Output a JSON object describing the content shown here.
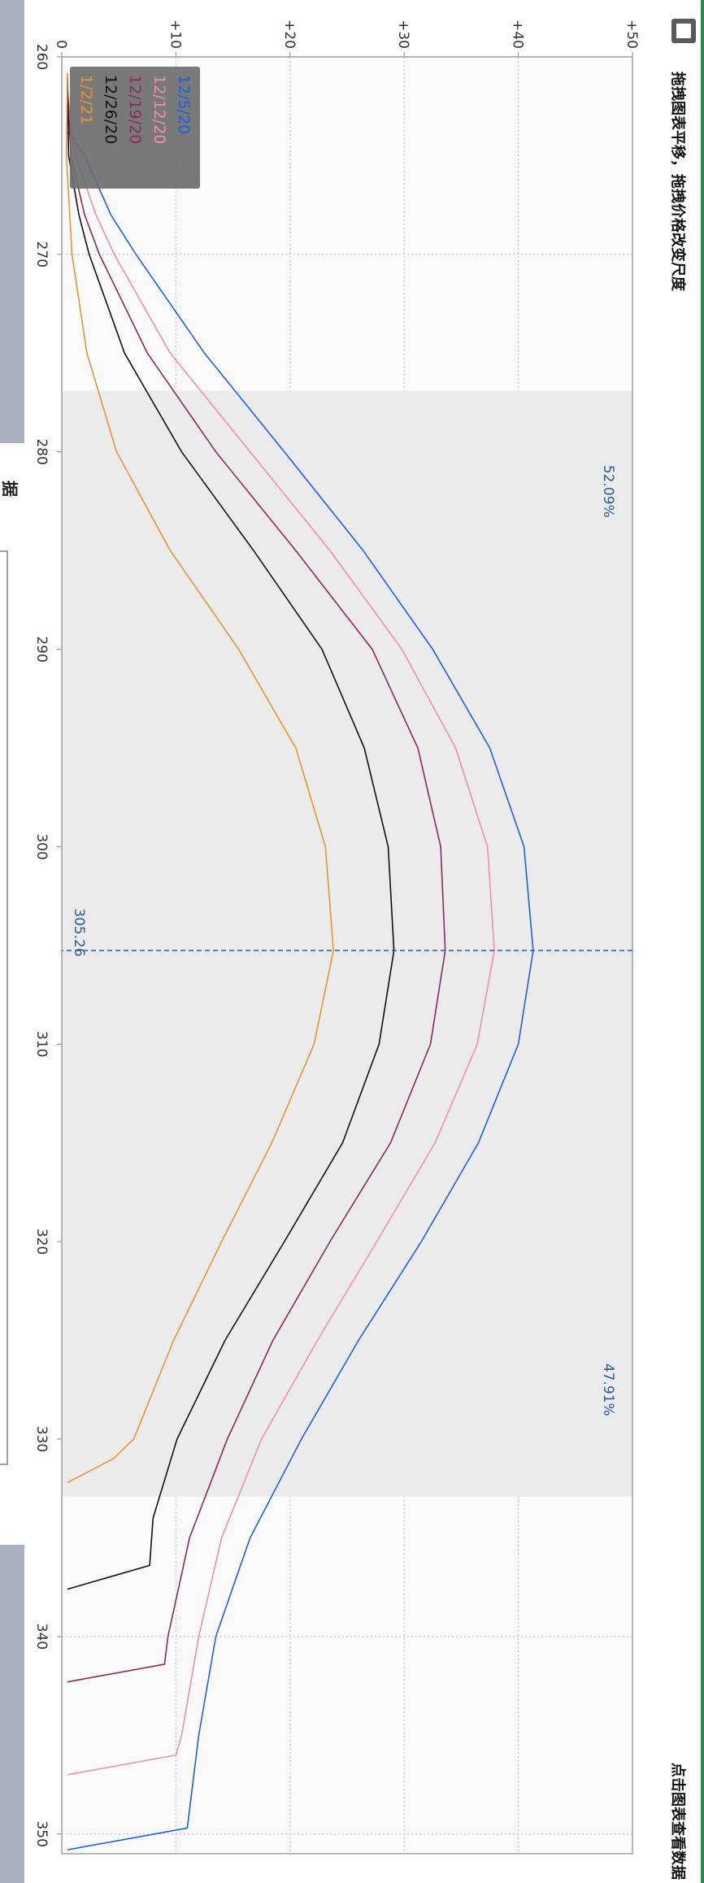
{
  "toolbar": {
    "hint_left": "拖拽图表平移，拖拽价格改变尺度",
    "hint_right": "点击图表查看数据",
    "chart_toggle_icon": "chart-icon",
    "left_panel_char": "据"
  },
  "colors": {
    "top_bar": "#2b8a4b",
    "side_panel": "#a9b2bc",
    "shaded_region": "#ebebeb",
    "marker": "#2b5a9a"
  },
  "chart_data": {
    "type": "line",
    "xlim": [
      260,
      351
    ],
    "ylim": [
      0,
      50
    ],
    "grid": true,
    "legend_position": "top-left",
    "x_ticks": [
      "260",
      "270",
      "280",
      "290",
      "300",
      "310",
      "320",
      "330",
      "340",
      "350"
    ],
    "y_ticks": [
      "0",
      "+10",
      "+20",
      "+30",
      "+40",
      "+50"
    ],
    "marker": {
      "x": 305.26,
      "label": "305.26"
    },
    "shaded_range": [
      276.9,
      332.9
    ],
    "annotations": [
      {
        "x": 282,
        "y": 47.5,
        "text": "52.09%"
      },
      {
        "x": 327.5,
        "y": 47.5,
        "text": "47.91%"
      }
    ],
    "series": [
      {
        "name": "12/5/20",
        "color": "#1f5fe8",
        "points": [
          [
            263.8,
            0.5
          ],
          [
            265,
            2
          ],
          [
            268,
            4.3
          ],
          [
            270,
            6.5
          ],
          [
            275,
            12.5
          ],
          [
            280,
            19.5
          ],
          [
            285,
            26.4
          ],
          [
            290,
            32.5
          ],
          [
            295,
            37.5
          ],
          [
            300,
            40.5
          ],
          [
            305.26,
            41.3
          ],
          [
            310,
            40
          ],
          [
            315,
            36.5
          ],
          [
            320,
            31.5
          ],
          [
            325,
            26
          ],
          [
            330,
            21
          ],
          [
            335,
            16.5
          ],
          [
            340,
            13.5
          ],
          [
            345,
            12
          ],
          [
            349.7,
            11
          ],
          [
            350.8,
            0.5
          ]
        ]
      },
      {
        "name": "12/12/20",
        "color": "#f090a8",
        "points": [
          [
            261.8,
            0.5
          ],
          [
            265,
            1.2
          ],
          [
            268,
            3
          ],
          [
            270,
            4.6
          ],
          [
            275,
            9.5
          ],
          [
            280,
            16.5
          ],
          [
            285,
            23.5
          ],
          [
            290,
            29.8
          ],
          [
            295,
            34.5
          ],
          [
            300,
            37.3
          ],
          [
            305.26,
            37.9
          ],
          [
            310,
            36.4
          ],
          [
            315,
            32.7
          ],
          [
            320,
            27.6
          ],
          [
            325,
            22.4
          ],
          [
            330,
            17.5
          ],
          [
            335,
            14
          ],
          [
            340,
            12
          ],
          [
            345,
            10.5
          ],
          [
            346,
            10
          ],
          [
            347,
            0.5
          ]
        ]
      },
      {
        "name": "12/19/20",
        "color": "#8b2a5a",
        "points": [
          [
            261.5,
            0.5
          ],
          [
            265,
            0.8
          ],
          [
            268,
            2
          ],
          [
            270,
            3.3
          ],
          [
            275,
            7.5
          ],
          [
            280,
            13.5
          ],
          [
            285,
            20.5
          ],
          [
            290,
            27.2
          ],
          [
            295,
            31.2
          ],
          [
            300,
            33.2
          ],
          [
            305.26,
            33.6
          ],
          [
            310,
            32.3
          ],
          [
            315,
            28.8
          ],
          [
            320,
            23.5
          ],
          [
            325,
            18.5
          ],
          [
            330,
            14.5
          ],
          [
            335,
            11.2
          ],
          [
            340,
            9.3
          ],
          [
            341.4,
            9
          ],
          [
            342.3,
            0.5
          ]
        ]
      },
      {
        "name": "12/26/20",
        "color": "#111111",
        "points": [
          [
            261,
            0.5
          ],
          [
            265,
            0.6
          ],
          [
            268,
            1.5
          ],
          [
            270,
            2.4
          ],
          [
            275,
            5.5
          ],
          [
            280,
            10.5
          ],
          [
            285,
            16.8
          ],
          [
            290,
            22.8
          ],
          [
            295,
            26.5
          ],
          [
            300,
            28.6
          ],
          [
            305.26,
            29.1
          ],
          [
            310,
            27.8
          ],
          [
            315,
            24.6
          ],
          [
            320,
            19.5
          ],
          [
            325,
            14.3
          ],
          [
            330,
            10.1
          ],
          [
            334,
            8
          ],
          [
            336.4,
            7.7
          ],
          [
            337.6,
            0.5
          ]
        ]
      },
      {
        "name": "1/2/21",
        "color": "#e8952e",
        "points": [
          [
            260.8,
            0.5
          ],
          [
            265,
            0.4
          ],
          [
            270,
            0.9
          ],
          [
            275,
            2.2
          ],
          [
            280,
            4.8
          ],
          [
            285,
            9.5
          ],
          [
            290,
            15.5
          ],
          [
            295,
            20.5
          ],
          [
            300,
            23.1
          ],
          [
            305.26,
            23.8
          ],
          [
            310,
            22.1
          ],
          [
            315,
            18.4
          ],
          [
            320,
            14
          ],
          [
            325,
            9.8
          ],
          [
            330,
            6.3
          ],
          [
            331,
            4.5
          ],
          [
            332.2,
            0.5
          ]
        ]
      }
    ]
  }
}
